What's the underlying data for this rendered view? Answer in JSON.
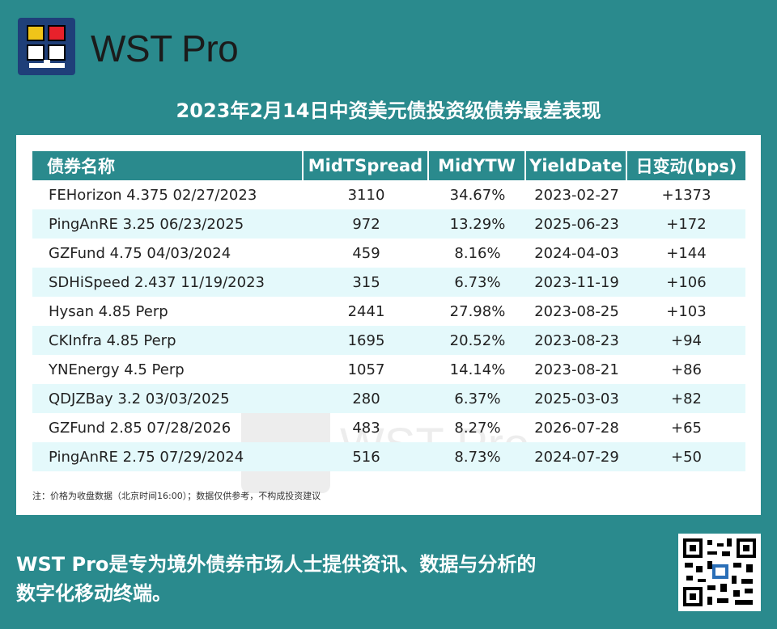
{
  "brand": {
    "name": "WST Pro"
  },
  "headline": "2023年2月14日中资美元债投资级债券最差表现",
  "table": {
    "headers": [
      "债券名称",
      "MidTSpread",
      "MidYTW",
      "YieldDate",
      "日变动(bps)"
    ],
    "rows": [
      [
        "FEHorizon 4.375 02/27/2023",
        "3110",
        "34.67%",
        "2023-02-27",
        "+1373"
      ],
      [
        "PingAnRE 3.25 06/23/2025",
        "972",
        "13.29%",
        "2025-06-23",
        "+172"
      ],
      [
        "GZFund 4.75 04/03/2024",
        "459",
        "8.16%",
        "2024-04-03",
        "+144"
      ],
      [
        "SDHiSpeed 2.437 11/19/2023",
        "315",
        "6.73%",
        "2023-11-19",
        "+106"
      ],
      [
        "Hysan 4.85 Perp",
        "2441",
        "27.98%",
        "2023-08-25",
        "+103"
      ],
      [
        "CKInfra 4.85 Perp",
        "1695",
        "20.52%",
        "2023-08-23",
        "+94"
      ],
      [
        "YNEnergy 4.5 Perp",
        "1057",
        "14.14%",
        "2023-08-21",
        "+86"
      ],
      [
        "QDJZBay 3.2 03/03/2025",
        "280",
        "6.37%",
        "2025-03-03",
        "+82"
      ],
      [
        "GZFund 2.85 07/28/2026",
        "483",
        "8.27%",
        "2026-07-28",
        "+65"
      ],
      [
        "PingAnRE 2.75 07/29/2024",
        "516",
        "8.73%",
        "2024-07-29",
        "+50"
      ]
    ]
  },
  "note": "注：价格为收盘数据（北京时间16:00）；数据仅供参考，不构成投资建议",
  "watermark": "WST Pro",
  "footer": {
    "line1": "WST Pro是专为境外债券市场人士提供资讯、数据与分析的",
    "line2": "数字化移动终端。"
  },
  "colors": {
    "background": "#2a8a8d",
    "header": "#2a8a8d",
    "row_alt": "#e4f9fb",
    "logo": "#1f3f79"
  },
  "icons": {
    "logo": "wst-logo-icon",
    "qr": "qr-code-icon"
  }
}
